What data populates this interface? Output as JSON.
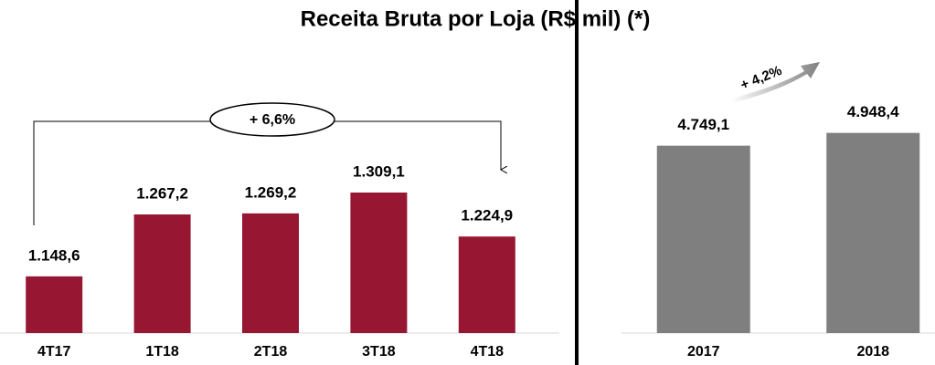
{
  "chart_data": [
    {
      "type": "bar",
      "title": "Receita Bruta por Loja (R$ mil) (*)",
      "categories": [
        "4T17",
        "1T18",
        "2T18",
        "3T18",
        "4T18"
      ],
      "values": [
        1148.6,
        1267.2,
        1269.2,
        1309.1,
        1224.9
      ],
      "value_labels": [
        "1.148,6",
        "1.267,2",
        "1.269,2",
        "1.309,1",
        "1.224,9"
      ],
      "color": "#971733",
      "ylim": [
        1040,
        1400
      ],
      "annotation": "+ 6,6%"
    },
    {
      "type": "bar",
      "categories": [
        "2017",
        "2018"
      ],
      "values": [
        4749.1,
        4948.4
      ],
      "value_labels": [
        "4.749,1",
        "4.948,4"
      ],
      "color": "#7f7f7f",
      "ylim": [
        1830,
        5000
      ],
      "annotation": "+ 4,2%"
    }
  ]
}
